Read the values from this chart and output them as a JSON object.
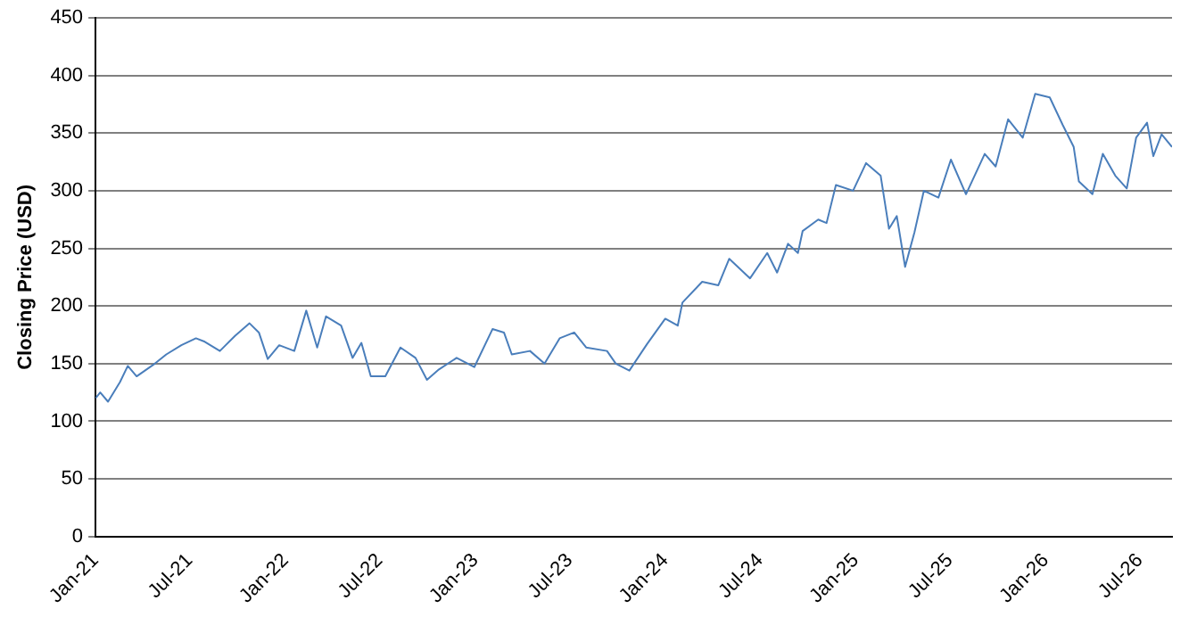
{
  "chart_data": {
    "type": "line",
    "ylabel": "Closing Price (USD)",
    "x": [
      "2021-01-01",
      "2021-01-10",
      "2021-01-25",
      "2021-02-17",
      "2021-03-04",
      "2021-03-21",
      "2021-04-25",
      "2021-05-17",
      "2021-06-15",
      "2021-07-13",
      "2021-07-30",
      "2021-08-28",
      "2021-09-26",
      "2021-10-24",
      "2021-11-11",
      "2021-11-28",
      "2021-12-20",
      "2022-01-18",
      "2022-02-10",
      "2022-03-03",
      "2022-03-20",
      "2022-04-18",
      "2022-05-10",
      "2022-05-27",
      "2022-06-14",
      "2022-07-12",
      "2022-08-10",
      "2022-09-08",
      "2022-09-30",
      "2022-10-23",
      "2022-11-26",
      "2022-12-30",
      "2023-02-03",
      "2023-02-25",
      "2023-03-12",
      "2023-04-16",
      "2023-05-14",
      "2023-06-12",
      "2023-07-10",
      "2023-08-02",
      "2023-09-11",
      "2023-09-28",
      "2023-10-24",
      "2023-11-27",
      "2024-01-01",
      "2024-01-25",
      "2024-02-03",
      "2024-03-12",
      "2024-04-12",
      "2024-05-03",
      "2024-06-12",
      "2024-07-15",
      "2024-08-03",
      "2024-08-24",
      "2024-09-12",
      "2024-09-21",
      "2024-10-21",
      "2024-11-06",
      "2024-11-24",
      "2024-12-27",
      "2025-01-21",
      "2025-02-18",
      "2025-03-06",
      "2025-03-21",
      "2025-04-06",
      "2025-04-24",
      "2025-05-12",
      "2025-06-09",
      "2025-07-03",
      "2025-08-01",
      "2025-09-06",
      "2025-09-27",
      "2025-10-21",
      "2025-11-18",
      "2025-12-12",
      "2026-01-09",
      "2026-02-03",
      "2026-02-24",
      "2026-03-06",
      "2026-04-01",
      "2026-04-21",
      "2026-05-15",
      "2026-06-06",
      "2026-06-24",
      "2026-07-15",
      "2026-07-27",
      "2026-08-12",
      "2026-09-01"
    ],
    "series": [
      {
        "color": "#4a7ebb",
        "values": [
          120,
          125,
          117,
          134,
          148,
          139,
          150,
          158,
          166,
          172,
          169,
          161,
          174,
          185,
          177,
          154,
          166,
          161,
          196,
          164,
          191,
          183,
          155,
          168,
          139,
          139,
          164,
          155,
          136,
          145,
          155,
          147,
          180,
          177,
          158,
          161,
          150,
          172,
          177,
          164,
          161,
          150,
          144,
          167,
          189,
          183,
          203,
          221,
          218,
          241,
          224,
          246,
          229,
          254,
          246,
          265,
          275,
          272,
          305,
          300,
          324,
          313,
          267,
          278,
          234,
          264,
          300,
          294,
          327,
          297,
          332,
          321,
          362,
          346,
          384,
          381,
          357,
          338,
          308,
          297,
          332,
          313,
          302,
          346,
          359,
          330,
          349,
          338
        ]
      }
    ],
    "xlim": [
      "2021-01-01",
      "2026-09-01"
    ],
    "xticks": [
      {
        "value": "2021-01",
        "label": "Jan-21"
      },
      {
        "value": "2021-07",
        "label": "Jul-21"
      },
      {
        "value": "2022-01",
        "label": "Jan-22"
      },
      {
        "value": "2022-07",
        "label": "Jul-22"
      },
      {
        "value": "2023-01",
        "label": "Jan-23"
      },
      {
        "value": "2023-07",
        "label": "Jul-23"
      },
      {
        "value": "2024-01",
        "label": "Jan-24"
      },
      {
        "value": "2024-07",
        "label": "Jul-24"
      },
      {
        "value": "2025-01",
        "label": "Jan-25"
      },
      {
        "value": "2025-07",
        "label": "Jul-25"
      },
      {
        "value": "2026-01",
        "label": "Jan-26"
      },
      {
        "value": "2026-07",
        "label": "Jul-26"
      }
    ],
    "ylim": [
      0,
      450
    ],
    "yticks": [
      0,
      50,
      100,
      150,
      200,
      250,
      300,
      350,
      400,
      450
    ],
    "grid": "y",
    "legend": false,
    "marker": "none",
    "line_style": "solid"
  }
}
